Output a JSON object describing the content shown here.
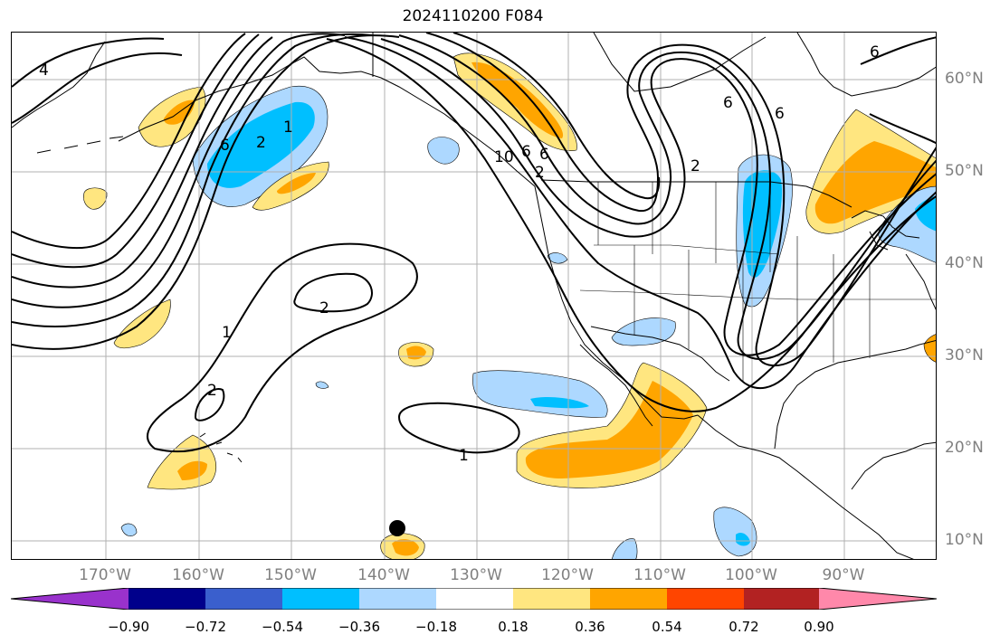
{
  "title": "2024110200 F084",
  "lat_labels": [
    "60°N",
    "50°N",
    "40°N",
    "30°N",
    "20°N",
    "10°N"
  ],
  "lon_labels": [
    "170°W",
    "160°W",
    "150°W",
    "140°W",
    "130°W",
    "120°W",
    "110°W",
    "100°W",
    "90°W"
  ],
  "contour_labels": [
    "4",
    "6",
    "2",
    "1",
    "6",
    "2",
    "1",
    "2",
    "1",
    "2",
    "6",
    "6",
    "6",
    "2",
    "6",
    "10"
  ],
  "colorbar": {
    "ticks": [
      "−0.90",
      "−0.72",
      "−0.54",
      "−0.36",
      "−0.18",
      "0.18",
      "0.36",
      "0.54",
      "0.72",
      "0.90"
    ],
    "colors": [
      "#9932cc",
      "#00008b",
      "#3a5fcd",
      "#00bfff",
      "#add8ff",
      "#ffffff",
      "#ffe680",
      "#ffa500",
      "#ff4500",
      "#b22222",
      "#ff88aa"
    ]
  },
  "colors": {
    "pos1": "#ffe680",
    "pos2": "#ffa500",
    "neg1": "#add8ff",
    "neg2": "#00bfff",
    "contour": "#000000",
    "grid": "#b0b0b0",
    "label": "#808080"
  },
  "marker": "storm-position-dot"
}
